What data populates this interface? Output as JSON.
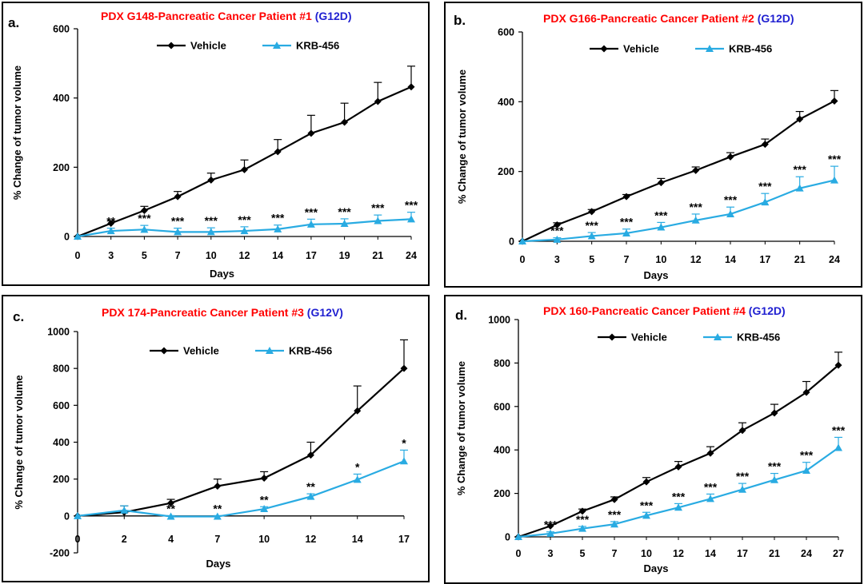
{
  "colors": {
    "vehicle": "#000000",
    "treated": "#29abe2",
    "title_red": "#ff0000",
    "mutation_blue": "#1f1fd1"
  },
  "chart_data": [
    {
      "type": "line",
      "panel_label": "a.",
      "title": "PDX G148-Pancreatic Cancer Patient #1",
      "mutation": "(G12D)",
      "xlabel": "Days",
      "ylabel": "% Change of tumor volume",
      "ylim": [
        0,
        600
      ],
      "yticks": [
        0,
        200,
        400,
        600
      ],
      "categories": [
        "0",
        "3",
        "5",
        "7",
        "10",
        "12",
        "14",
        "17",
        "19",
        "21",
        "24"
      ],
      "series": [
        {
          "name": "Vehicle",
          "color": "#000000",
          "marker": "diamond",
          "values": [
            0,
            38,
            75,
            115,
            163,
            193,
            245,
            298,
            330,
            390,
            432
          ],
          "errors": [
            0,
            7,
            12,
            15,
            20,
            28,
            35,
            52,
            55,
            55,
            60
          ]
        },
        {
          "name": "KRB-456",
          "color": "#29abe2",
          "marker": "triangle",
          "values": [
            0,
            16,
            20,
            13,
            13,
            16,
            21,
            35,
            37,
            45,
            50
          ],
          "errors": [
            0,
            8,
            12,
            11,
            12,
            12,
            12,
            15,
            14,
            17,
            20
          ],
          "significance": [
            "",
            "**",
            "***",
            "***",
            "***",
            "***",
            "***",
            "***",
            "***",
            "***",
            "***"
          ]
        }
      ]
    },
    {
      "type": "line",
      "panel_label": "b.",
      "title": "PDX G166-Pancreatic Cancer Patient #2",
      "mutation": "(G12D)",
      "xlabel": "Days",
      "ylabel": "% Change of tumor volume",
      "ylim": [
        0,
        600
      ],
      "yticks": [
        0,
        200,
        400,
        600
      ],
      "categories": [
        "0",
        "3",
        "5",
        "7",
        "10",
        "12",
        "14",
        "17",
        "21",
        "24"
      ],
      "series": [
        {
          "name": "Vehicle",
          "color": "#000000",
          "marker": "diamond",
          "values": [
            0,
            47,
            85,
            128,
            168,
            203,
            242,
            278,
            350,
            402
          ],
          "errors": [
            0,
            6,
            6,
            6,
            12,
            10,
            12,
            15,
            22,
            30
          ]
        },
        {
          "name": "KRB-456",
          "color": "#29abe2",
          "marker": "triangle",
          "values": [
            0,
            5,
            15,
            23,
            40,
            60,
            78,
            112,
            152,
            175
          ],
          "errors": [
            0,
            5,
            10,
            12,
            14,
            18,
            20,
            25,
            33,
            40
          ],
          "significance": [
            "",
            "***",
            "***",
            "***",
            "***",
            "***",
            "***",
            "***",
            "***",
            "***"
          ]
        }
      ]
    },
    {
      "type": "line",
      "panel_label": "c.",
      "title": "PDX 174-Pancreatic Cancer Patient #3",
      "mutation": "(G12V)",
      "xlabel": "Days",
      "ylabel": "% Change of tumor volume",
      "ylim": [
        -200,
        1000
      ],
      "yticks": [
        -200,
        0,
        200,
        400,
        600,
        800,
        1000
      ],
      "categories": [
        "0",
        "2",
        "4",
        "7",
        "10",
        "12",
        "14",
        "17"
      ],
      "series": [
        {
          "name": "Vehicle",
          "color": "#000000",
          "marker": "diamond",
          "values": [
            0,
            20,
            70,
            162,
            205,
            330,
            570,
            800
          ],
          "errors": [
            0,
            35,
            20,
            38,
            35,
            70,
            135,
            155
          ]
        },
        {
          "name": "KRB-456",
          "color": "#29abe2",
          "marker": "triangle",
          "values": [
            0,
            30,
            -3,
            -3,
            38,
            105,
            197,
            297
          ],
          "errors": [
            0,
            25,
            5,
            5,
            12,
            15,
            30,
            60
          ],
          "significance": [
            "",
            "",
            "**",
            "**",
            "**",
            "**",
            "*",
            "*"
          ]
        }
      ]
    },
    {
      "type": "line",
      "panel_label": "d.",
      "title": "PDX 160-Pancreatic Cancer Patient #4",
      "mutation": "(G12D)",
      "xlabel": "Days",
      "ylabel": "% Change of tumor volume",
      "ylim": [
        0,
        1000
      ],
      "yticks": [
        0,
        200,
        400,
        600,
        800,
        1000
      ],
      "categories": [
        "0",
        "3",
        "5",
        "7",
        "10",
        "12",
        "14",
        "17",
        "21",
        "24",
        "27"
      ],
      "series": [
        {
          "name": "Vehicle",
          "color": "#000000",
          "marker": "diamond",
          "values": [
            0,
            50,
            118,
            172,
            253,
            322,
            385,
            490,
            570,
            665,
            790
          ],
          "errors": [
            0,
            8,
            10,
            12,
            20,
            25,
            30,
            35,
            40,
            50,
            60
          ]
        },
        {
          "name": "KRB-456",
          "color": "#29abe2",
          "marker": "triangle",
          "values": [
            0,
            15,
            38,
            58,
            98,
            135,
            175,
            218,
            262,
            305,
            410
          ],
          "errors": [
            0,
            8,
            10,
            12,
            15,
            18,
            22,
            28,
            30,
            38,
            48
          ],
          "significance": [
            "",
            "***",
            "***",
            "***",
            "***",
            "***",
            "***",
            "***",
            "***",
            "***",
            "***"
          ]
        }
      ]
    }
  ]
}
